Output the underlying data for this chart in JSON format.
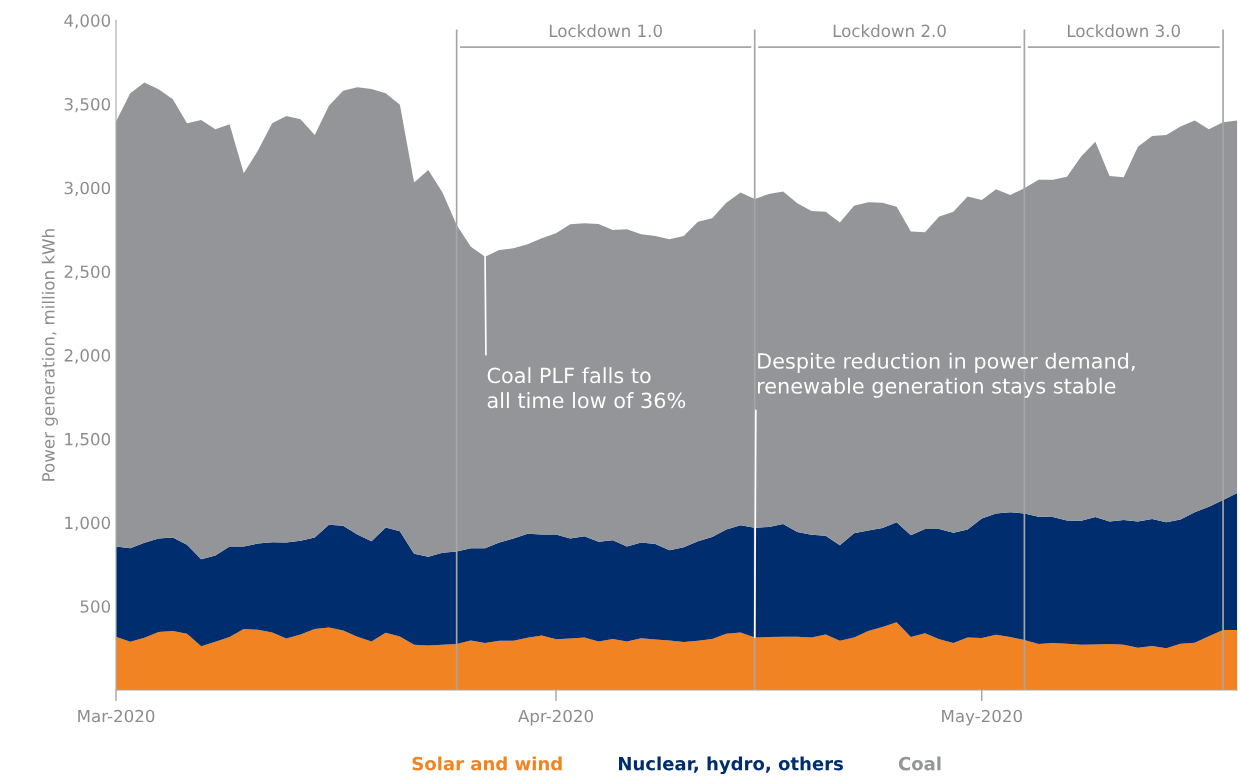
{
  "chart_data": {
    "type": "area",
    "stacked": true,
    "ylabel": "Power generation, million kWh",
    "x": [
      "2020-03-01",
      "2020-03-02",
      "2020-03-03",
      "2020-03-04",
      "2020-03-05",
      "2020-03-06",
      "2020-03-07",
      "2020-03-08",
      "2020-03-09",
      "2020-03-10",
      "2020-03-11",
      "2020-03-12",
      "2020-03-13",
      "2020-03-14",
      "2020-03-15",
      "2020-03-16",
      "2020-03-17",
      "2020-03-18",
      "2020-03-19",
      "2020-03-20",
      "2020-03-21",
      "2020-03-22",
      "2020-03-23",
      "2020-03-24",
      "2020-03-25",
      "2020-03-26",
      "2020-03-27",
      "2020-03-28",
      "2020-03-29",
      "2020-03-30",
      "2020-03-31",
      "2020-04-01",
      "2020-04-02",
      "2020-04-03",
      "2020-04-04",
      "2020-04-05",
      "2020-04-06",
      "2020-04-07",
      "2020-04-08",
      "2020-04-09",
      "2020-04-10",
      "2020-04-11",
      "2020-04-12",
      "2020-04-13",
      "2020-04-14",
      "2020-04-15",
      "2020-04-16",
      "2020-04-17",
      "2020-04-18",
      "2020-04-19",
      "2020-04-20",
      "2020-04-21",
      "2020-04-22",
      "2020-04-23",
      "2020-04-24",
      "2020-04-25",
      "2020-04-26",
      "2020-04-27",
      "2020-04-28",
      "2020-04-29",
      "2020-04-30",
      "2020-05-01",
      "2020-05-02",
      "2020-05-03",
      "2020-05-04",
      "2020-05-05",
      "2020-05-06",
      "2020-05-07",
      "2020-05-08",
      "2020-05-09",
      "2020-05-10",
      "2020-05-11",
      "2020-05-12",
      "2020-05-13",
      "2020-05-14",
      "2020-05-15",
      "2020-05-16",
      "2020-05-17",
      "2020-05-18",
      "2020-05-19"
    ],
    "ylim": [
      0,
      4000
    ],
    "yticks": [
      {
        "value": 500,
        "label": "500"
      },
      {
        "value": 1000,
        "label": "1,000"
      },
      {
        "value": 1500,
        "label": "1,500"
      },
      {
        "value": 2000,
        "label": "2,000"
      },
      {
        "value": 2500,
        "label": "2,500"
      },
      {
        "value": 3000,
        "label": "3,000"
      },
      {
        "value": 3500,
        "label": "3,500"
      },
      {
        "value": 4000,
        "label": "4,000"
      }
    ],
    "xlim": [
      "2020-03-01",
      "2020-05-19"
    ],
    "xticks": [
      {
        "value": "2020-03-01",
        "label": "Mar-2020"
      },
      {
        "value": "2020-04-01",
        "label": "Apr-2020"
      },
      {
        "value": "2020-05-01",
        "label": "May-2020"
      }
    ],
    "grid": false,
    "legend": "bottom",
    "series": [
      {
        "name": "Solar and wind",
        "color": "#f28322",
        "values": [
          318,
          288,
          312,
          346,
          353,
          336,
          262,
          288,
          316,
          364,
          360,
          344,
          308,
          332,
          364,
          373,
          355,
          318,
          290,
          342,
          320,
          271,
          266,
          271,
          275,
          296,
          281,
          294,
          294,
          312,
          325,
          303,
          308,
          314,
          290,
          305,
          290,
          309,
          301,
          296,
          287,
          294,
          305,
          336,
          343,
          314,
          316,
          318,
          318,
          314,
          332,
          294,
          314,
          352,
          376,
          405,
          316,
          339,
          303,
          281,
          314,
          310,
          330,
          316,
          299,
          275,
          281,
          277,
          270,
          272,
          275,
          270,
          252,
          263,
          250,
          277,
          283,
          321,
          358,
          358
        ]
      },
      {
        "name": "Nuclear, hydro, others",
        "color": "#002d6e",
        "values": [
          539,
          558,
          567,
          559,
          558,
          532,
          519,
          515,
          541,
          493,
          515,
          539,
          573,
          560,
          547,
          614,
          626,
          611,
          599,
          628,
          628,
          543,
          530,
          549,
          552,
          550,
          565,
          587,
          611,
          621,
          604,
          626,
          597,
          604,
          595,
          589,
          567,
          572,
          571,
          539,
          565,
          595,
          609,
          622,
          641,
          655,
          658,
          673,
          626,
          613,
          590,
          571,
          622,
          600,
          591,
          597,
          609,
          623,
          659,
          659,
          644,
          714,
          725,
          746,
          756,
          760,
          752,
          736,
          741,
          761,
          732,
          746,
          755,
          759,
          752,
          741,
          779,
          774,
          777,
          819
        ]
      },
      {
        "name": "Coal",
        "color": "#939598",
        "values": [
          2538,
          2719,
          2749,
          2683,
          2617,
          2517,
          2624,
          2546,
          2522,
          2230,
          2347,
          2502,
          2548,
          2517,
          2404,
          2502,
          2599,
          2671,
          2701,
          2595,
          2547,
          2217,
          2310,
          2151,
          1951,
          1802,
          1742,
          1747,
          1733,
          1729,
          1769,
          1799,
          1877,
          1870,
          1899,
          1854,
          1895,
          1841,
          1840,
          1857,
          1860,
          1908,
          1903,
          1953,
          1987,
          1964,
          1989,
          1986,
          1963,
          1934,
          1935,
          1927,
          1957,
          1961,
          1944,
          1885,
          1813,
          1772,
          1866,
          1917,
          1989,
          1903,
          1936,
          1895,
          1942,
          2012,
          2014,
          2053,
          2175,
          2242,
          2063,
          2046,
          2238,
          2287,
          2313,
          2347,
          2339,
          2254,
          2256,
          2224
        ]
      }
    ],
    "ref_lines": [
      {
        "axis": "x",
        "value": "2020-03-25",
        "color": "#a6a6a6"
      },
      {
        "axis": "x",
        "value": "2020-04-15",
        "color": "#a6a6a6"
      },
      {
        "axis": "x",
        "value": "2020-05-04",
        "color": "#a6a6a6"
      },
      {
        "axis": "x",
        "value": "2020-05-18",
        "color": "#a6a6a6"
      }
    ],
    "annotations": [
      "Lockdown 1.0",
      "Lockdown 2.0",
      "Lockdown 3.0",
      {
        "text": "Coal PLF falls to\nall time low of 36%",
        "x": "2020-03-27",
        "y": 2588
      },
      {
        "text": "Despite reduction in power demand,\nrenewable generation stays stable",
        "x": "2020-04-15",
        "y": 314
      }
    ]
  }
}
